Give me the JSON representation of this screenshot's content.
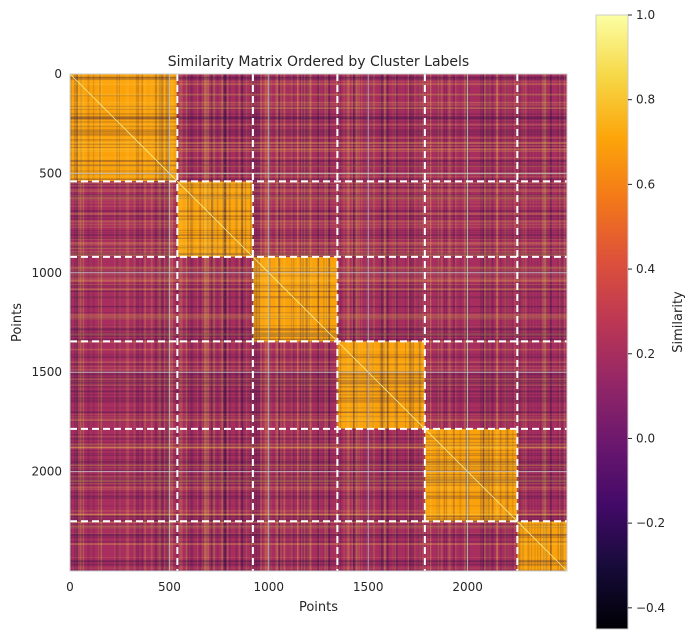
{
  "chart_data": {
    "type": "heatmap",
    "title": "Similarity Matrix Ordered by Cluster Labels",
    "xlabel": "Points",
    "ylabel": "Points",
    "n_points": 2500,
    "xlim": [
      0,
      2500
    ],
    "ylim": [
      2500,
      0
    ],
    "x_ticks": [
      0,
      500,
      1000,
      1500,
      2000
    ],
    "y_ticks": [
      0,
      500,
      1000,
      1500,
      2000
    ],
    "cluster_boundaries": [
      540,
      920,
      1345,
      1785,
      2250
    ],
    "cluster_ranges": [
      [
        0,
        540
      ],
      [
        540,
        920
      ],
      [
        920,
        1345
      ],
      [
        1345,
        1785
      ],
      [
        1785,
        2250
      ],
      [
        2250,
        2500
      ]
    ],
    "within_cluster_similarity": 0.7,
    "between_cluster_similarity": 0.2,
    "boundary_line_style": "dashed",
    "boundary_line_color": "#ffffff",
    "grid": true,
    "colorbar": {
      "label": "Similarity",
      "colormap": "inferno",
      "vmin": -0.45,
      "vmax": 1.0,
      "ticks": [
        "1.0",
        "0.8",
        "0.6",
        "0.4",
        "0.2",
        "0.0",
        "−0.2",
        "−0.4"
      ],
      "tick_values": [
        1.0,
        0.8,
        0.6,
        0.4,
        0.2,
        0.0,
        -0.2,
        -0.4
      ]
    }
  }
}
